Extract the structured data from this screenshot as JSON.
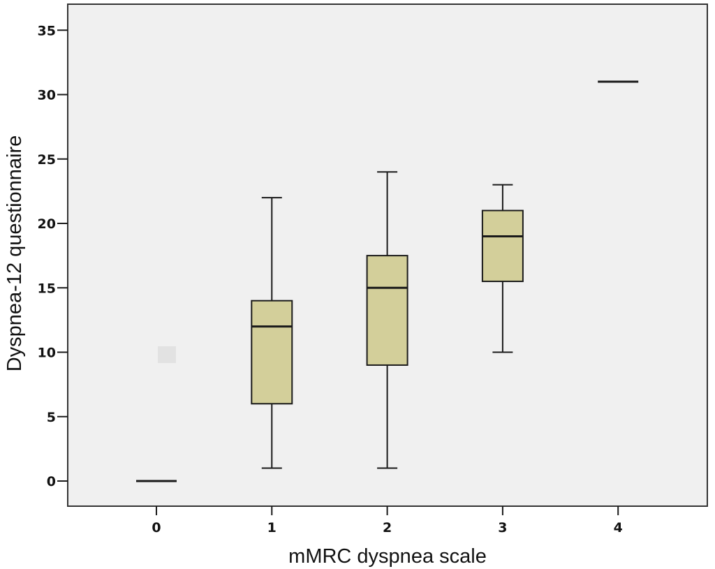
{
  "chart_data": {
    "type": "boxplot",
    "title": "",
    "xlabel": "mMRC dyspnea scale",
    "ylabel": "Dyspnea-12 questionnaire",
    "categories": [
      "0",
      "1",
      "2",
      "3",
      "4"
    ],
    "yticks": [
      0,
      5,
      10,
      15,
      20,
      25,
      30,
      35
    ],
    "ylim": [
      -2,
      37
    ],
    "grid": false,
    "legend": null,
    "boxes": [
      {
        "category": "0",
        "whisker_low": 0,
        "q1": 0,
        "median": 0,
        "q3": 0,
        "whisker_high": 0
      },
      {
        "category": "1",
        "whisker_low": 1,
        "q1": 6,
        "median": 12,
        "q3": 14,
        "whisker_high": 22
      },
      {
        "category": "2",
        "whisker_low": 1,
        "q1": 9,
        "median": 15,
        "q3": 17.5,
        "whisker_high": 24
      },
      {
        "category": "3",
        "whisker_low": 10,
        "q1": 15.5,
        "median": 19,
        "q3": 21,
        "whisker_high": 23
      },
      {
        "category": "4",
        "whisker_low": 31,
        "q1": 31,
        "median": 31,
        "q3": 31,
        "whisker_high": 31
      }
    ]
  },
  "colors": {
    "plot_background": "#f0f0f0",
    "box_fill": "#d3cf9a",
    "line": "#1a1a1a"
  }
}
